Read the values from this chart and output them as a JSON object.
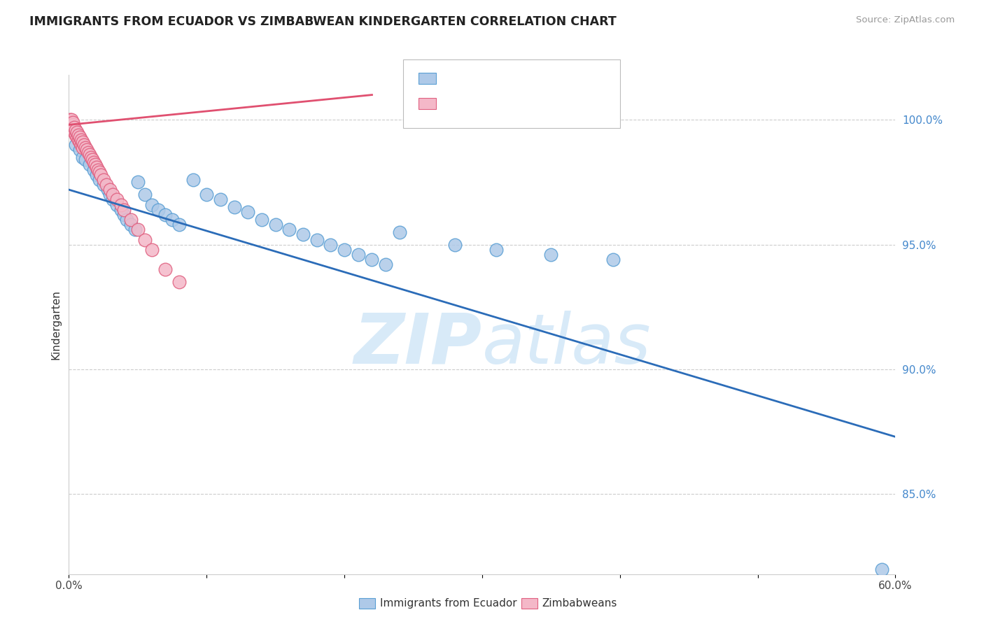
{
  "title": "IMMIGRANTS FROM ECUADOR VS ZIMBABWEAN KINDERGARTEN CORRELATION CHART",
  "source": "Source: ZipAtlas.com",
  "xlabel_bottom": [
    "Immigrants from Ecuador",
    "Zimbabweans"
  ],
  "ylabel": "Kindergarten",
  "xlim": [
    0.0,
    0.6
  ],
  "ylim": [
    0.818,
    1.018
  ],
  "xticks": [
    0.0,
    0.1,
    0.2,
    0.3,
    0.4,
    0.5,
    0.6
  ],
  "xtick_labels": [
    "0.0%",
    "",
    "",
    "",
    "",
    "",
    "60.0%"
  ],
  "yticks": [
    0.85,
    0.9,
    0.95,
    1.0
  ],
  "ytick_labels": [
    "85.0%",
    "90.0%",
    "95.0%",
    "100.0%"
  ],
  "blue_color": "#aec9e8",
  "blue_edge_color": "#5a9fd4",
  "pink_color": "#f4b8c8",
  "pink_edge_color": "#e06080",
  "trend_blue": "#2b6cb8",
  "trend_pink": "#e05070",
  "watermark_zip": "ZIP",
  "watermark_atlas": "atlas",
  "watermark_color": "#d8eaf8",
  "blue_points_x": [
    0.005,
    0.008,
    0.01,
    0.012,
    0.015,
    0.018,
    0.02,
    0.022,
    0.025,
    0.028,
    0.03,
    0.032,
    0.035,
    0.038,
    0.04,
    0.042,
    0.045,
    0.048,
    0.05,
    0.055,
    0.06,
    0.065,
    0.07,
    0.075,
    0.08,
    0.09,
    0.1,
    0.11,
    0.12,
    0.13,
    0.14,
    0.15,
    0.16,
    0.17,
    0.18,
    0.19,
    0.2,
    0.21,
    0.22,
    0.23,
    0.24,
    0.28,
    0.31,
    0.35,
    0.395,
    0.59
  ],
  "blue_points_y": [
    0.99,
    0.988,
    0.985,
    0.984,
    0.982,
    0.98,
    0.978,
    0.976,
    0.974,
    0.972,
    0.97,
    0.968,
    0.966,
    0.964,
    0.962,
    0.96,
    0.958,
    0.956,
    0.975,
    0.97,
    0.966,
    0.964,
    0.962,
    0.96,
    0.958,
    0.976,
    0.97,
    0.968,
    0.965,
    0.963,
    0.96,
    0.958,
    0.956,
    0.954,
    0.952,
    0.95,
    0.948,
    0.946,
    0.944,
    0.942,
    0.955,
    0.95,
    0.948,
    0.946,
    0.944,
    0.82
  ],
  "pink_points_x": [
    0.001,
    0.001,
    0.001,
    0.002,
    0.002,
    0.002,
    0.002,
    0.003,
    0.003,
    0.003,
    0.004,
    0.004,
    0.005,
    0.005,
    0.006,
    0.006,
    0.007,
    0.007,
    0.008,
    0.008,
    0.009,
    0.009,
    0.01,
    0.01,
    0.011,
    0.012,
    0.013,
    0.014,
    0.015,
    0.016,
    0.017,
    0.018,
    0.019,
    0.02,
    0.021,
    0.022,
    0.023,
    0.025,
    0.027,
    0.03,
    0.032,
    0.035,
    0.038,
    0.04,
    0.045,
    0.05,
    0.055,
    0.06,
    0.07,
    0.08
  ],
  "pink_points_y": [
    0.999,
    1.0,
    0.998,
    0.999,
    0.997,
    0.998,
    1.0,
    0.996,
    0.998,
    0.999,
    0.995,
    0.997,
    0.994,
    0.996,
    0.993,
    0.995,
    0.992,
    0.994,
    0.991,
    0.993,
    0.99,
    0.992,
    0.989,
    0.991,
    0.99,
    0.989,
    0.988,
    0.987,
    0.986,
    0.985,
    0.984,
    0.983,
    0.982,
    0.981,
    0.98,
    0.979,
    0.978,
    0.976,
    0.974,
    0.972,
    0.97,
    0.968,
    0.966,
    0.964,
    0.96,
    0.956,
    0.952,
    0.948,
    0.94,
    0.935
  ],
  "blue_trend_x": [
    0.0,
    0.6
  ],
  "blue_trend_y": [
    0.972,
    0.873
  ],
  "pink_trend_x": [
    0.0,
    0.22
  ],
  "pink_trend_y": [
    0.998,
    1.01
  ]
}
